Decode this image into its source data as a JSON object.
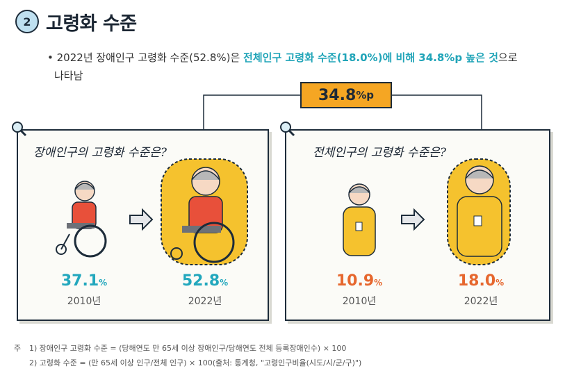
{
  "header": {
    "section_number": "2",
    "title": "고령화 수준"
  },
  "bullet": {
    "marker": "•",
    "text_before": "2022년 장애인구 고령화 수준(52.8%)은 ",
    "highlight": "전체인구 고령화 수준(18.0%)에 비해 34.8%p 높은 것",
    "text_after_1": "으로",
    "text_after_2": "나타남"
  },
  "difference": {
    "value": "34.8",
    "unit": "%p"
  },
  "chart_data": [
    {
      "type": "bar",
      "title": "장애인구의 고령화 수준은?",
      "categories": [
        "2010년",
        "2022년"
      ],
      "values": [
        37.1,
        52.8
      ],
      "value_labels": [
        "37.1",
        "52.8"
      ],
      "unit": "%",
      "color": "#22a7bd"
    },
    {
      "type": "bar",
      "title": "전체인구의 고령화 수준은?",
      "categories": [
        "2010년",
        "2022년"
      ],
      "values": [
        10.9,
        18.0
      ],
      "value_labels": [
        "10.9",
        "18.0"
      ],
      "unit": "%",
      "color": "#e6672e"
    }
  ],
  "footnotes": {
    "marker": "주",
    "note1": "1) 장애인구 고령화 수준 = (당해연도 만 65세 이상 장애인구/당해연도 전체 등록장애인수) × 100",
    "note2": "2) 고령화 수준 = (만 65세 이상 인구/전체 인구) × 100(출처: 통계청, \"고령인구비율(시도/시/군/구)\")"
  },
  "colors": {
    "accent_teal": "#22a7bd",
    "accent_orange": "#e6672e",
    "diff_box": "#f5a623",
    "outline": "#1d2c3a"
  }
}
